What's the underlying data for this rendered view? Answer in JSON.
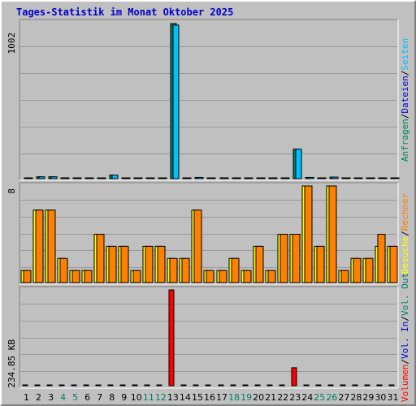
{
  "title": "Tages-Statistik im Monat Oktober 2025",
  "chart_data": [
    {
      "type": "bar",
      "name": "requests-panel",
      "scale_label": "1002",
      "categories": [
        "1",
        "2",
        "3",
        "4",
        "5",
        "6",
        "7",
        "8",
        "9",
        "10",
        "11",
        "12",
        "13",
        "14",
        "15",
        "16",
        "17",
        "18",
        "19",
        "20",
        "21",
        "22",
        "23",
        "24",
        "25",
        "26",
        "27",
        "28",
        "29",
        "30",
        "31"
      ],
      "series": [
        {
          "name": "Anfragen",
          "color": "#008060",
          "values": [
            5,
            12,
            12,
            3,
            3,
            3,
            3,
            23,
            3,
            3,
            3,
            3,
            1002,
            3,
            8,
            3,
            3,
            3,
            3,
            3,
            3,
            3,
            190,
            8,
            3,
            10,
            3,
            3,
            3,
            3,
            3
          ]
        },
        {
          "name": "Dateien",
          "color": "#0000cc",
          "values": [
            0,
            0,
            0,
            0,
            0,
            0,
            0,
            0,
            0,
            0,
            0,
            0,
            0,
            0,
            0,
            0,
            0,
            0,
            0,
            0,
            0,
            0,
            0,
            0,
            0,
            0,
            0,
            0,
            0,
            0,
            0
          ]
        },
        {
          "name": "Seiten",
          "color": "#00c0ff",
          "values": [
            5,
            12,
            12,
            3,
            3,
            3,
            3,
            23,
            3,
            3,
            3,
            3,
            992,
            3,
            8,
            3,
            3,
            3,
            3,
            3,
            3,
            3,
            190,
            8,
            3,
            10,
            3,
            3,
            3,
            3,
            3
          ]
        }
      ],
      "ylim": [
        0,
        1002
      ],
      "right_label": [
        {
          "text": "Anfragen",
          "color": "#008060"
        },
        {
          "text": "/",
          "color": "#000000"
        },
        {
          "text": "Dateien",
          "color": "#0000cc"
        },
        {
          "text": "/",
          "color": "#000000"
        },
        {
          "text": "Seiten",
          "color": "#00c0ff"
        }
      ]
    },
    {
      "type": "bar",
      "name": "visits-panel",
      "scale_label": "8",
      "categories": [
        "1",
        "2",
        "3",
        "4",
        "5",
        "6",
        "7",
        "8",
        "9",
        "10",
        "11",
        "12",
        "13",
        "14",
        "15",
        "16",
        "17",
        "18",
        "19",
        "20",
        "21",
        "22",
        "23",
        "24",
        "25",
        "26",
        "27",
        "28",
        "29",
        "30",
        "31"
      ],
      "series": [
        {
          "name": "Besuche",
          "color": "#ffff00",
          "values": [
            1,
            6,
            6,
            2,
            1,
            1,
            4,
            3,
            3,
            1,
            3,
            3,
            2,
            2,
            6,
            1,
            1,
            2,
            1,
            3,
            1,
            4,
            4,
            8,
            3,
            8,
            1,
            2,
            2,
            3,
            3
          ]
        },
        {
          "name": "Rechner",
          "color": "#ff8000",
          "values": [
            1,
            6,
            6,
            2,
            1,
            1,
            4,
            3,
            3,
            1,
            3,
            3,
            2,
            2,
            6,
            1,
            1,
            2,
            1,
            3,
            1,
            4,
            4,
            8,
            3,
            8,
            1,
            2,
            2,
            4,
            3
          ]
        }
      ],
      "ylim": [
        0,
        8
      ],
      "right_label": [
        {
          "text": "Besuche",
          "color": "#ffff00"
        },
        {
          "text": "/",
          "color": "#000000"
        },
        {
          "text": "Rechner",
          "color": "#ff8000"
        }
      ]
    },
    {
      "type": "bar",
      "name": "volume-panel",
      "scale_label": "234.85 KB",
      "categories": [
        "1",
        "2",
        "3",
        "4",
        "5",
        "6",
        "7",
        "8",
        "9",
        "10",
        "11",
        "12",
        "13",
        "14",
        "15",
        "16",
        "17",
        "18",
        "19",
        "20",
        "21",
        "22",
        "23",
        "24",
        "25",
        "26",
        "27",
        "28",
        "29",
        "30",
        "31"
      ],
      "series": [
        {
          "name": "Volumen",
          "color": "#ff0000",
          "values": [
            0,
            0,
            0,
            0,
            0,
            0,
            0,
            2,
            0,
            0,
            0,
            0,
            234.85,
            0,
            0,
            0,
            0,
            0,
            0,
            0,
            0,
            0,
            44,
            0,
            0,
            0,
            0,
            0,
            0,
            0,
            0
          ]
        },
        {
          "name": "Vol. In",
          "color": "#0000cc",
          "values": [
            0,
            0,
            0,
            0,
            0,
            0,
            0,
            0,
            0,
            0,
            0,
            0,
            0,
            0,
            0,
            0,
            0,
            0,
            0,
            0,
            0,
            0,
            0,
            0,
            0,
            0,
            0,
            0,
            0,
            0,
            0
          ]
        },
        {
          "name": "Vol. Out",
          "color": "#008060",
          "values": [
            0,
            0,
            0,
            0,
            0,
            0,
            0,
            0,
            0,
            0,
            0,
            0,
            0,
            0,
            0,
            0,
            0,
            0,
            0,
            0,
            0,
            0,
            0,
            0,
            0,
            0,
            0,
            0,
            0,
            0,
            0
          ]
        }
      ],
      "ylim": [
        0,
        234.85
      ],
      "right_label": [
        {
          "text": "Volumen",
          "color": "#ff0000"
        },
        {
          "text": "/",
          "color": "#000000"
        },
        {
          "text": "Vol. In",
          "color": "#0000cc"
        },
        {
          "text": "/",
          "color": "#000000"
        },
        {
          "text": "Vol. Out",
          "color": "#008060"
        }
      ]
    }
  ],
  "x_axis": {
    "labels": [
      "1",
      "2",
      "3",
      "4",
      "5",
      "6",
      "7",
      "8",
      "9",
      "10",
      "11",
      "12",
      "13",
      "14",
      "15",
      "16",
      "17",
      "18",
      "19",
      "20",
      "21",
      "22",
      "23",
      "24",
      "25",
      "26",
      "27",
      "28",
      "29",
      "30",
      "31"
    ],
    "weekend_days": [
      "4",
      "5",
      "11",
      "12",
      "18",
      "19",
      "25",
      "26"
    ],
    "weekday_color": "#000000",
    "weekend_color": "#008060"
  }
}
